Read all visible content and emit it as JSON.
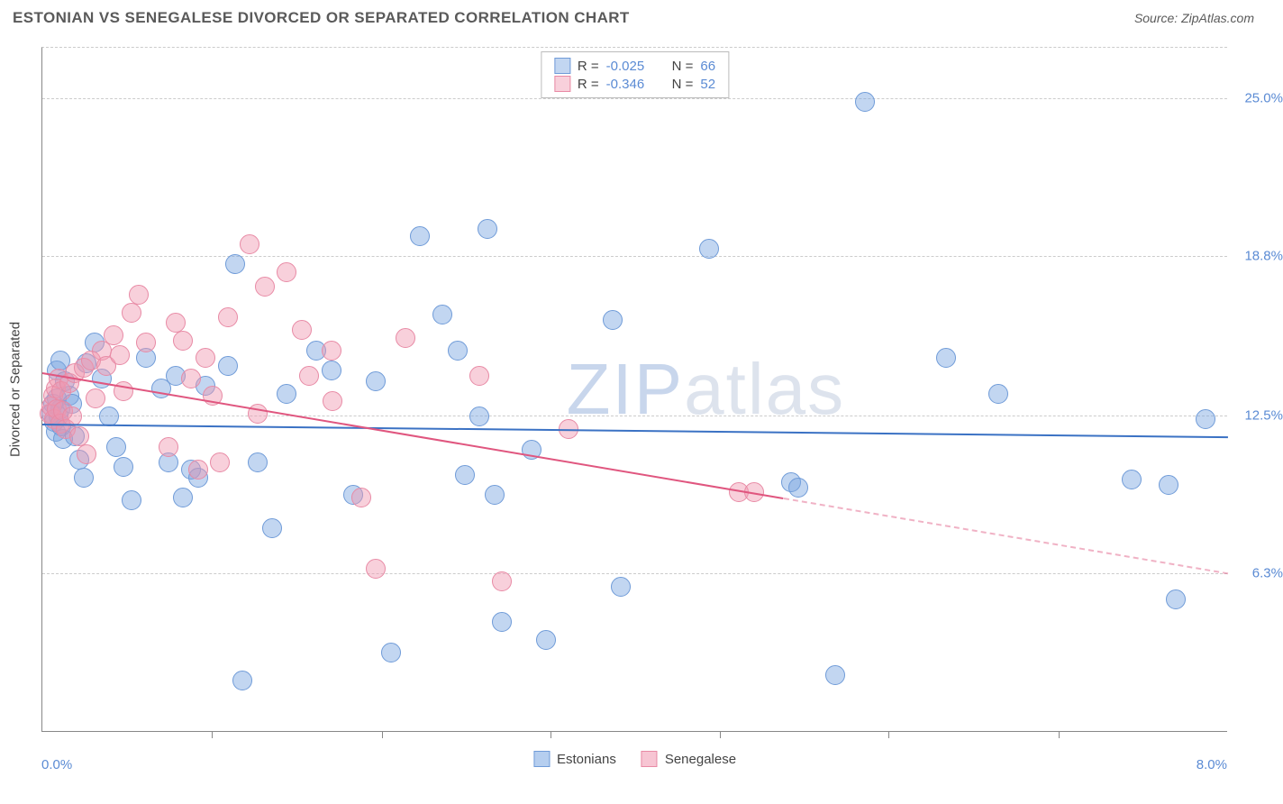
{
  "title": "ESTONIAN VS SENEGALESE DIVORCED OR SEPARATED CORRELATION CHART",
  "source": "Source: ZipAtlas.com",
  "watermark": {
    "text_a": "ZIP",
    "text_b": "atlas",
    "color_a": "#c8d6ec",
    "color_b": "#dde3ed"
  },
  "y_axis": {
    "title": "Divorced or Separated",
    "min": 0.0,
    "max": 27.0,
    "ticks": [
      {
        "v": 25.0,
        "label": "25.0%"
      },
      {
        "v": 18.8,
        "label": "18.8%"
      },
      {
        "v": 12.5,
        "label": "12.5%"
      },
      {
        "v": 6.3,
        "label": "6.3%"
      }
    ]
  },
  "x_axis": {
    "min": 0.0,
    "max": 8.0,
    "start_label": "0.0%",
    "end_label": "8.0%",
    "ticks_at": [
      1.14,
      2.29,
      3.43,
      4.57,
      5.71,
      6.86
    ]
  },
  "series": [
    {
      "name": "Estonians",
      "fill": "rgba(120,165,225,0.45)",
      "stroke": "#6f9bd8",
      "trend_color": "#3b72c4",
      "R": "-0.025",
      "N": "66",
      "trend": {
        "x1": 0.0,
        "y1": 12.2,
        "x2": 8.0,
        "y2": 11.7,
        "solid_until_x": 8.0
      },
      "radius": 11,
      "points": [
        [
          0.06,
          12.5
        ],
        [
          0.07,
          12.9
        ],
        [
          0.08,
          12.2
        ],
        [
          0.09,
          11.8
        ],
        [
          0.1,
          13.1
        ],
        [
          0.11,
          12.4
        ],
        [
          0.12,
          12.7
        ],
        [
          0.13,
          12.0
        ],
        [
          0.14,
          11.5
        ],
        [
          0.1,
          14.2
        ],
        [
          0.12,
          14.6
        ],
        [
          0.15,
          13.8
        ],
        [
          0.18,
          13.2
        ],
        [
          0.2,
          12.9
        ],
        [
          0.22,
          11.6
        ],
        [
          0.25,
          10.7
        ],
        [
          0.28,
          10.0
        ],
        [
          0.3,
          14.5
        ],
        [
          0.35,
          15.3
        ],
        [
          0.4,
          13.9
        ],
        [
          0.45,
          12.4
        ],
        [
          0.5,
          11.2
        ],
        [
          0.55,
          10.4
        ],
        [
          0.6,
          9.1
        ],
        [
          0.7,
          14.7
        ],
        [
          0.8,
          13.5
        ],
        [
          0.85,
          10.6
        ],
        [
          0.9,
          14.0
        ],
        [
          0.95,
          9.2
        ],
        [
          1.0,
          10.3
        ],
        [
          1.05,
          10.0
        ],
        [
          1.1,
          13.6
        ],
        [
          1.25,
          14.4
        ],
        [
          1.3,
          18.4
        ],
        [
          1.35,
          2.0
        ],
        [
          1.45,
          10.6
        ],
        [
          1.55,
          8.0
        ],
        [
          1.65,
          13.3
        ],
        [
          1.85,
          15.0
        ],
        [
          1.95,
          14.2
        ],
        [
          2.1,
          9.3
        ],
        [
          2.25,
          13.8
        ],
        [
          2.35,
          3.1
        ],
        [
          2.55,
          19.5
        ],
        [
          2.7,
          16.4
        ],
        [
          2.8,
          15.0
        ],
        [
          2.85,
          10.1
        ],
        [
          2.95,
          12.4
        ],
        [
          3.0,
          19.8
        ],
        [
          3.05,
          9.3
        ],
        [
          3.1,
          4.3
        ],
        [
          3.3,
          11.1
        ],
        [
          3.4,
          3.6
        ],
        [
          3.85,
          16.2
        ],
        [
          3.9,
          5.7
        ],
        [
          4.5,
          19.0
        ],
        [
          5.05,
          9.8
        ],
        [
          5.1,
          9.6
        ],
        [
          5.35,
          2.2
        ],
        [
          5.55,
          24.8
        ],
        [
          6.1,
          14.7
        ],
        [
          6.45,
          13.3
        ],
        [
          7.35,
          9.9
        ],
        [
          7.6,
          9.7
        ],
        [
          7.65,
          5.2
        ],
        [
          7.85,
          12.3
        ]
      ]
    },
    {
      "name": "Senegalese",
      "fill": "rgba(240,150,175,0.45)",
      "stroke": "#e88aa5",
      "trend_color": "#e0567f",
      "R": "-0.346",
      "N": "52",
      "trend": {
        "x1": 0.0,
        "y1": 14.2,
        "x2": 8.0,
        "y2": 6.3,
        "solid_until_x": 5.0
      },
      "radius": 11,
      "points": [
        [
          0.05,
          12.5
        ],
        [
          0.06,
          12.8
        ],
        [
          0.07,
          13.2
        ],
        [
          0.08,
          12.3
        ],
        [
          0.09,
          13.5
        ],
        [
          0.1,
          12.7
        ],
        [
          0.11,
          13.9
        ],
        [
          0.12,
          12.1
        ],
        [
          0.13,
          13.4
        ],
        [
          0.14,
          12.6
        ],
        [
          0.16,
          11.9
        ],
        [
          0.18,
          13.7
        ],
        [
          0.2,
          12.4
        ],
        [
          0.22,
          14.1
        ],
        [
          0.25,
          11.6
        ],
        [
          0.28,
          14.3
        ],
        [
          0.3,
          10.9
        ],
        [
          0.33,
          14.6
        ],
        [
          0.36,
          13.1
        ],
        [
          0.4,
          15.0
        ],
        [
          0.43,
          14.4
        ],
        [
          0.48,
          15.6
        ],
        [
          0.52,
          14.8
        ],
        [
          0.55,
          13.4
        ],
        [
          0.6,
          16.5
        ],
        [
          0.65,
          17.2
        ],
        [
          0.7,
          15.3
        ],
        [
          0.85,
          11.2
        ],
        [
          0.9,
          16.1
        ],
        [
          0.95,
          15.4
        ],
        [
          1.0,
          13.9
        ],
        [
          1.05,
          10.3
        ],
        [
          1.1,
          14.7
        ],
        [
          1.15,
          13.2
        ],
        [
          1.2,
          10.6
        ],
        [
          1.25,
          16.3
        ],
        [
          1.4,
          19.2
        ],
        [
          1.45,
          12.5
        ],
        [
          1.5,
          17.5
        ],
        [
          1.65,
          18.1
        ],
        [
          1.75,
          15.8
        ],
        [
          1.8,
          14.0
        ],
        [
          1.95,
          15.0
        ],
        [
          1.96,
          13.0
        ],
        [
          2.15,
          9.2
        ],
        [
          2.25,
          6.4
        ],
        [
          2.45,
          15.5
        ],
        [
          2.95,
          14.0
        ],
        [
          3.1,
          5.9
        ],
        [
          3.55,
          11.9
        ],
        [
          4.7,
          9.4
        ],
        [
          4.8,
          9.4
        ]
      ]
    }
  ],
  "legend_bottom": [
    {
      "label": "Estonians",
      "fill": "rgba(120,165,225,0.55)",
      "stroke": "#6f9bd8"
    },
    {
      "label": "Senegalese",
      "fill": "rgba(240,150,175,0.55)",
      "stroke": "#e88aa5"
    }
  ]
}
